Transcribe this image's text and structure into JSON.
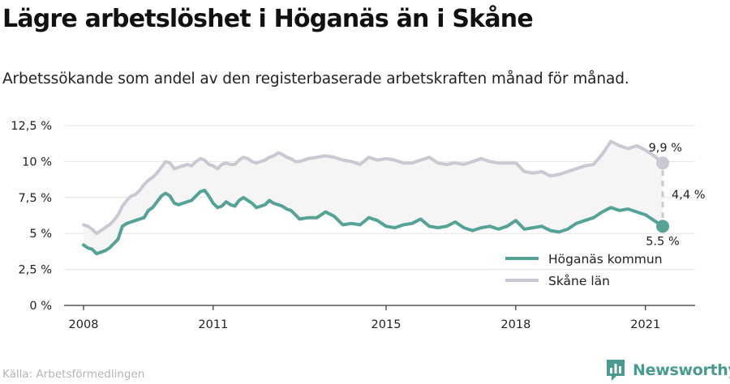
{
  "title": "Lägre arbetslöshet i Höganäs än i Skåne",
  "subtitle": "Arbetssökande som andel av den registerbaserade arbetskraften månad för månad.",
  "source": "Källa: Arbetsförmedlingen",
  "brand": {
    "name": "Newsworthy",
    "logo_icon": "bar-chart-logo-icon"
  },
  "colors": {
    "hoganas": "#55a397",
    "skane": "#c9c9d3",
    "band": "#f5f5f5",
    "grid": "#e3e3e3",
    "axis": "#333333"
  },
  "chart_data": {
    "type": "line",
    "x_unit": "year",
    "x_ticks": [
      2008,
      2011,
      2015,
      2018,
      2021
    ],
    "x_tick_labels": [
      "2008",
      "2011",
      "2015",
      "2018",
      "2021"
    ],
    "xlim": [
      2007.55,
      2022.15
    ],
    "ylim": [
      0,
      12.5
    ],
    "y_ticks": [
      0,
      2.5,
      5,
      7.5,
      10,
      12.5
    ],
    "y_tick_labels": [
      "0 %",
      "2,5 %",
      "5 %",
      "7,5 %",
      "10 %",
      "12,5 %"
    ],
    "grid": true,
    "legend_position": "bottom-right",
    "series": [
      {
        "name": "Höganäs kommun",
        "color": "#55a397",
        "x": [
          2008.0,
          2008.1,
          2008.2,
          2008.3,
          2008.4,
          2008.5,
          2008.6,
          2008.7,
          2008.8,
          2008.9,
          2009.0,
          2009.1,
          2009.2,
          2009.3,
          2009.4,
          2009.5,
          2009.6,
          2009.7,
          2009.8,
          2009.9,
          2010.0,
          2010.1,
          2010.2,
          2010.3,
          2010.4,
          2010.5,
          2010.6,
          2010.7,
          2010.8,
          2010.9,
          2011.0,
          2011.1,
          2011.2,
          2011.3,
          2011.4,
          2011.5,
          2011.6,
          2011.7,
          2011.8,
          2011.9,
          2012.0,
          2012.1,
          2012.2,
          2012.3,
          2012.4,
          2012.5,
          2012.6,
          2012.7,
          2012.8,
          2012.9,
          2013.0,
          2013.2,
          2013.4,
          2013.6,
          2013.8,
          2014.0,
          2014.2,
          2014.4,
          2014.6,
          2014.8,
          2015.0,
          2015.2,
          2015.4,
          2015.6,
          2015.8,
          2016.0,
          2016.2,
          2016.4,
          2016.6,
          2016.8,
          2017.0,
          2017.2,
          2017.4,
          2017.6,
          2017.8,
          2018.0,
          2018.2,
          2018.4,
          2018.6,
          2018.8,
          2019.0,
          2019.2,
          2019.4,
          2019.6,
          2019.8,
          2020.0,
          2020.2,
          2020.4,
          2020.6,
          2020.8,
          2021.0,
          2021.2,
          2021.4
        ],
        "values": [
          4.2,
          4.0,
          3.9,
          3.6,
          3.7,
          3.8,
          4.0,
          4.3,
          4.6,
          5.5,
          5.7,
          5.8,
          5.9,
          6.0,
          6.1,
          6.6,
          6.8,
          7.2,
          7.6,
          7.8,
          7.6,
          7.1,
          7.0,
          7.1,
          7.2,
          7.3,
          7.6,
          7.9,
          8.0,
          7.6,
          7.1,
          6.8,
          6.9,
          7.2,
          7.0,
          6.9,
          7.3,
          7.5,
          7.3,
          7.1,
          6.8,
          6.9,
          7.0,
          7.3,
          7.1,
          7.0,
          6.9,
          6.7,
          6.6,
          6.3,
          6.0,
          6.1,
          6.1,
          6.5,
          6.2,
          5.6,
          5.7,
          5.6,
          6.1,
          5.9,
          5.5,
          5.4,
          5.6,
          5.7,
          6.0,
          5.5,
          5.4,
          5.5,
          5.8,
          5.4,
          5.2,
          5.4,
          5.5,
          5.3,
          5.5,
          5.9,
          5.3,
          5.4,
          5.5,
          5.2,
          5.1,
          5.3,
          5.7,
          5.9,
          6.1,
          6.5,
          6.8,
          6.6,
          6.7,
          6.5,
          6.3,
          5.9,
          5.5
        ]
      },
      {
        "name": "Skåne län",
        "color": "#c9c9d3",
        "x": [
          2008.0,
          2008.1,
          2008.2,
          2008.3,
          2008.4,
          2008.5,
          2008.6,
          2008.7,
          2008.8,
          2008.9,
          2009.0,
          2009.1,
          2009.2,
          2009.3,
          2009.4,
          2009.5,
          2009.6,
          2009.7,
          2009.8,
          2009.9,
          2010.0,
          2010.1,
          2010.2,
          2010.3,
          2010.4,
          2010.5,
          2010.6,
          2010.7,
          2010.8,
          2010.9,
          2011.0,
          2011.1,
          2011.2,
          2011.3,
          2011.4,
          2011.5,
          2011.6,
          2011.7,
          2011.8,
          2011.9,
          2012.0,
          2012.1,
          2012.2,
          2012.3,
          2012.4,
          2012.5,
          2012.6,
          2012.7,
          2012.8,
          2012.9,
          2013.0,
          2013.2,
          2013.4,
          2013.6,
          2013.8,
          2014.0,
          2014.2,
          2014.4,
          2014.6,
          2014.8,
          2015.0,
          2015.2,
          2015.4,
          2015.6,
          2015.8,
          2016.0,
          2016.2,
          2016.4,
          2016.6,
          2016.8,
          2017.0,
          2017.2,
          2017.4,
          2017.6,
          2017.8,
          2018.0,
          2018.2,
          2018.4,
          2018.6,
          2018.8,
          2019.0,
          2019.2,
          2019.4,
          2019.6,
          2019.8,
          2020.0,
          2020.2,
          2020.4,
          2020.6,
          2020.8,
          2021.0,
          2021.2,
          2021.4
        ],
        "values": [
          5.6,
          5.5,
          5.3,
          5.0,
          5.2,
          5.4,
          5.6,
          5.9,
          6.3,
          6.9,
          7.3,
          7.6,
          7.7,
          8.0,
          8.4,
          8.7,
          8.9,
          9.2,
          9.6,
          10.0,
          9.9,
          9.5,
          9.6,
          9.7,
          9.8,
          9.7,
          10.0,
          10.2,
          10.1,
          9.8,
          9.7,
          9.5,
          9.8,
          9.9,
          9.8,
          9.8,
          10.1,
          10.3,
          10.2,
          10.0,
          9.9,
          10.0,
          10.1,
          10.3,
          10.4,
          10.6,
          10.5,
          10.3,
          10.2,
          10.0,
          10.0,
          10.2,
          10.3,
          10.4,
          10.3,
          10.1,
          10.0,
          9.8,
          10.3,
          10.1,
          10.2,
          10.1,
          9.9,
          9.9,
          10.1,
          10.3,
          9.9,
          9.8,
          9.9,
          9.8,
          10.0,
          10.2,
          10.0,
          9.9,
          9.9,
          9.9,
          9.3,
          9.2,
          9.3,
          9.0,
          9.1,
          9.3,
          9.5,
          9.7,
          9.8,
          10.5,
          11.4,
          11.1,
          10.9,
          11.1,
          10.8,
          10.4,
          9.9
        ]
      }
    ],
    "end_labels": {
      "skane": "9,9 %",
      "hoganas": "5.5 %",
      "difference": "4,4 %"
    }
  }
}
